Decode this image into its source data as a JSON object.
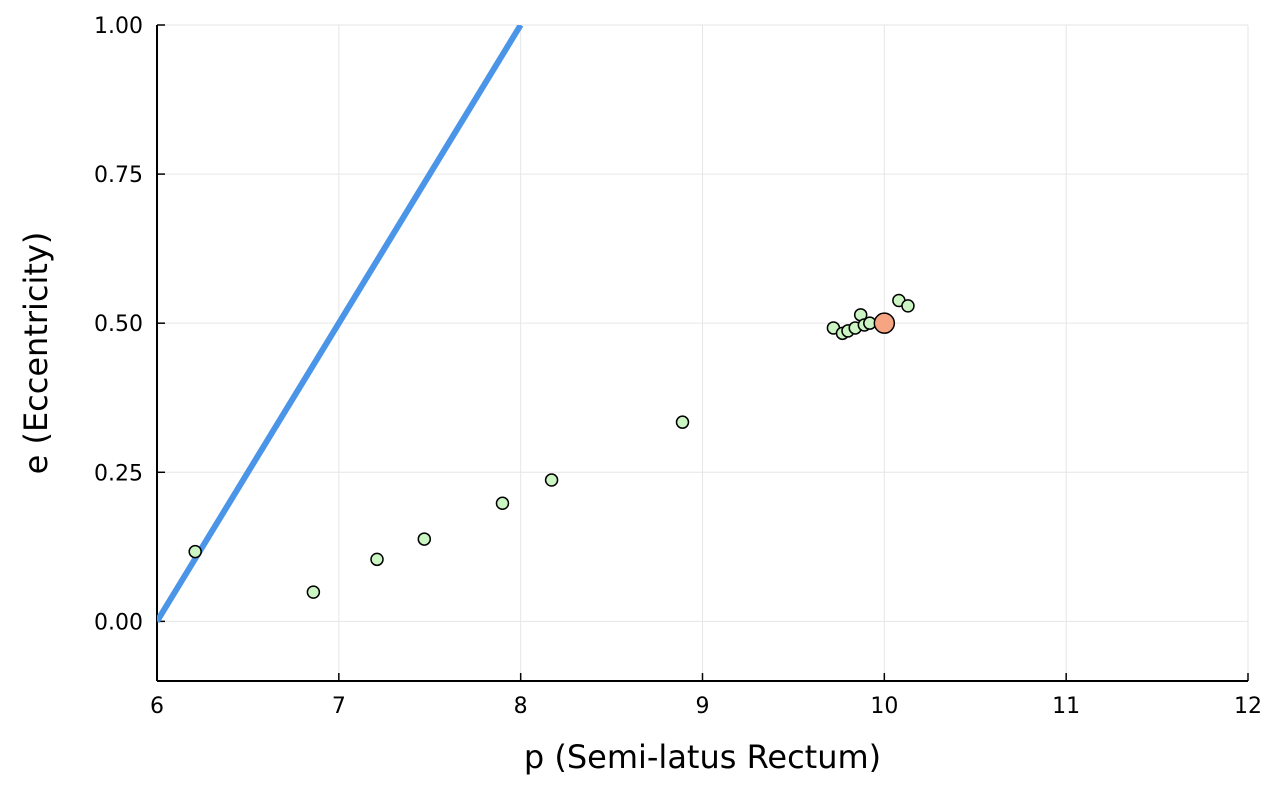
{
  "chart_data": {
    "type": "scatter",
    "title": "",
    "xlabel": "p (Semi-latus Rectum)",
    "ylabel": "e (Eccentricity)",
    "xlim": [
      6,
      12
    ],
    "ylim": [
      -0.1,
      1.0
    ],
    "xticks": [
      6,
      7,
      8,
      9,
      10,
      11,
      12
    ],
    "xtick_labels": [
      "6",
      "7",
      "8",
      "9",
      "10",
      "11",
      "12"
    ],
    "yticks": [
      0.0,
      0.25,
      0.5,
      0.75,
      1.0
    ],
    "ytick_labels": [
      "0.00",
      "0.25",
      "0.50",
      "0.75",
      "1.00"
    ],
    "grid": true,
    "legend": "none",
    "line": {
      "kind": "separatrix",
      "color": "#4a95e8",
      "x": [
        6,
        8
      ],
      "y": [
        0,
        1
      ]
    },
    "series": [
      {
        "kind": "samples",
        "color": "#ccf5c4",
        "points": [
          {
            "x": 6.21,
            "y": 0.117
          },
          {
            "x": 6.86,
            "y": 0.049
          },
          {
            "x": 7.21,
            "y": 0.104
          },
          {
            "x": 7.47,
            "y": 0.138
          },
          {
            "x": 7.9,
            "y": 0.198
          },
          {
            "x": 8.17,
            "y": 0.237
          },
          {
            "x": 8.89,
            "y": 0.334
          },
          {
            "x": 9.72,
            "y": 0.492
          },
          {
            "x": 9.77,
            "y": 0.483
          },
          {
            "x": 9.8,
            "y": 0.487
          },
          {
            "x": 9.84,
            "y": 0.492
          },
          {
            "x": 9.87,
            "y": 0.514
          },
          {
            "x": 9.89,
            "y": 0.497
          },
          {
            "x": 9.92,
            "y": 0.5
          },
          {
            "x": 10.08,
            "y": 0.538
          },
          {
            "x": 10.13,
            "y": 0.529
          }
        ]
      },
      {
        "kind": "target",
        "color": "#f5a582",
        "points": [
          {
            "x": 10.0,
            "y": 0.5
          }
        ]
      }
    ]
  }
}
